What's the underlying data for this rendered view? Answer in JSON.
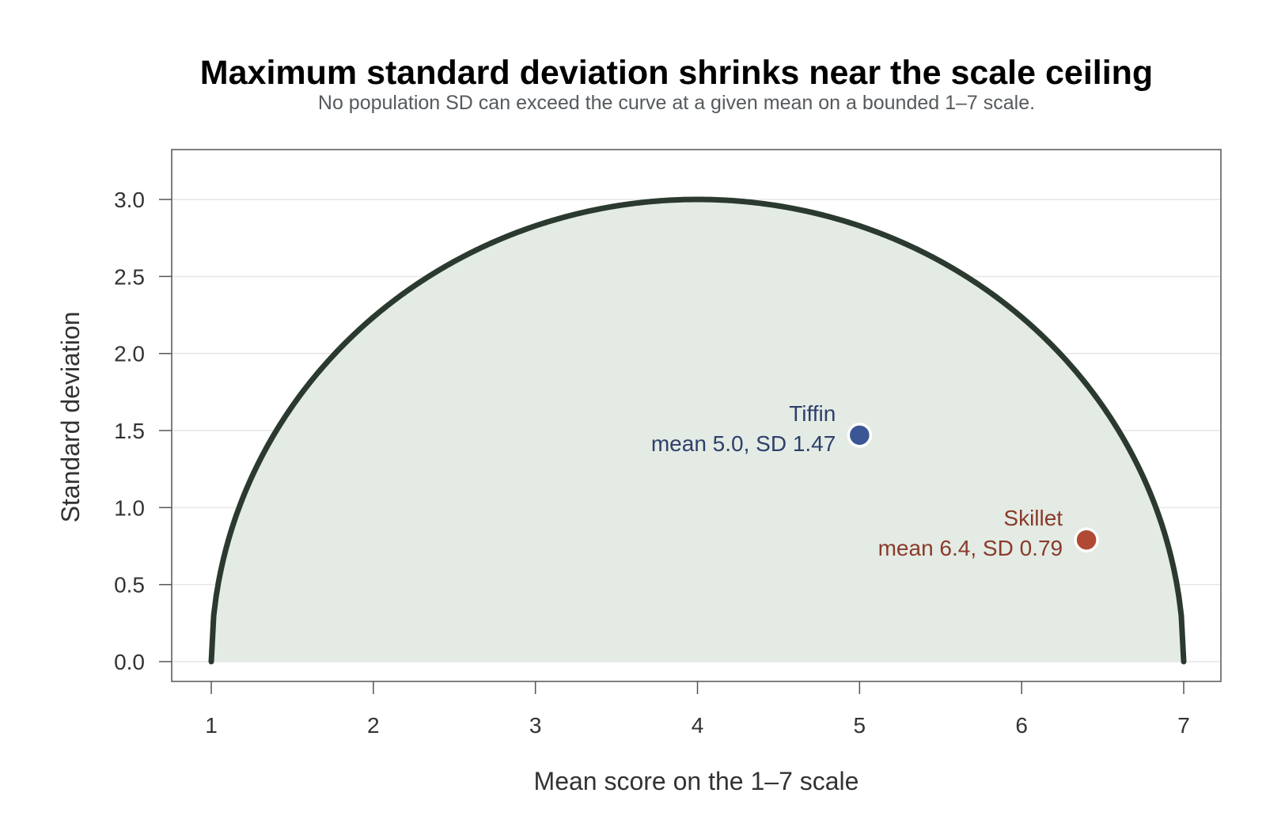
{
  "chart_data": {
    "type": "area",
    "title": "Maximum standard deviation shrinks near the scale ceiling",
    "subtitle": "No population SD can exceed the curve at a given mean on a bounded 1–7 scale.",
    "xlabel": "Mean score on the 1–7 scale",
    "ylabel": "Standard deviation",
    "xlim": [
      1,
      7
    ],
    "ylim": [
      0,
      3.0
    ],
    "xticks": [
      "1",
      "2",
      "3",
      "4",
      "5",
      "6",
      "7"
    ],
    "yticks": [
      "0.0",
      "0.5",
      "1.0",
      "1.5",
      "2.0",
      "2.5",
      "3.0"
    ],
    "grid": "horizontal",
    "boundary_curve": "max SD = sqrt((mean − 1)(7 − mean))",
    "points": [
      {
        "name": "Tiffin",
        "x": 5.0,
        "y": 1.47,
        "label": "mean 5.0, SD 1.47",
        "color": "#3b5694",
        "label_color": "#2e3f6b"
      },
      {
        "name": "Skillet",
        "x": 6.4,
        "y": 0.79,
        "label": "mean 6.4, SD 0.79",
        "color": "#b04a35",
        "label_color": "#8a3a2b"
      }
    ],
    "colors": {
      "curve": "#2b3a2f",
      "fill": "#e3ebe4",
      "grid": "#e6e6e6",
      "frame": "#555555"
    }
  }
}
